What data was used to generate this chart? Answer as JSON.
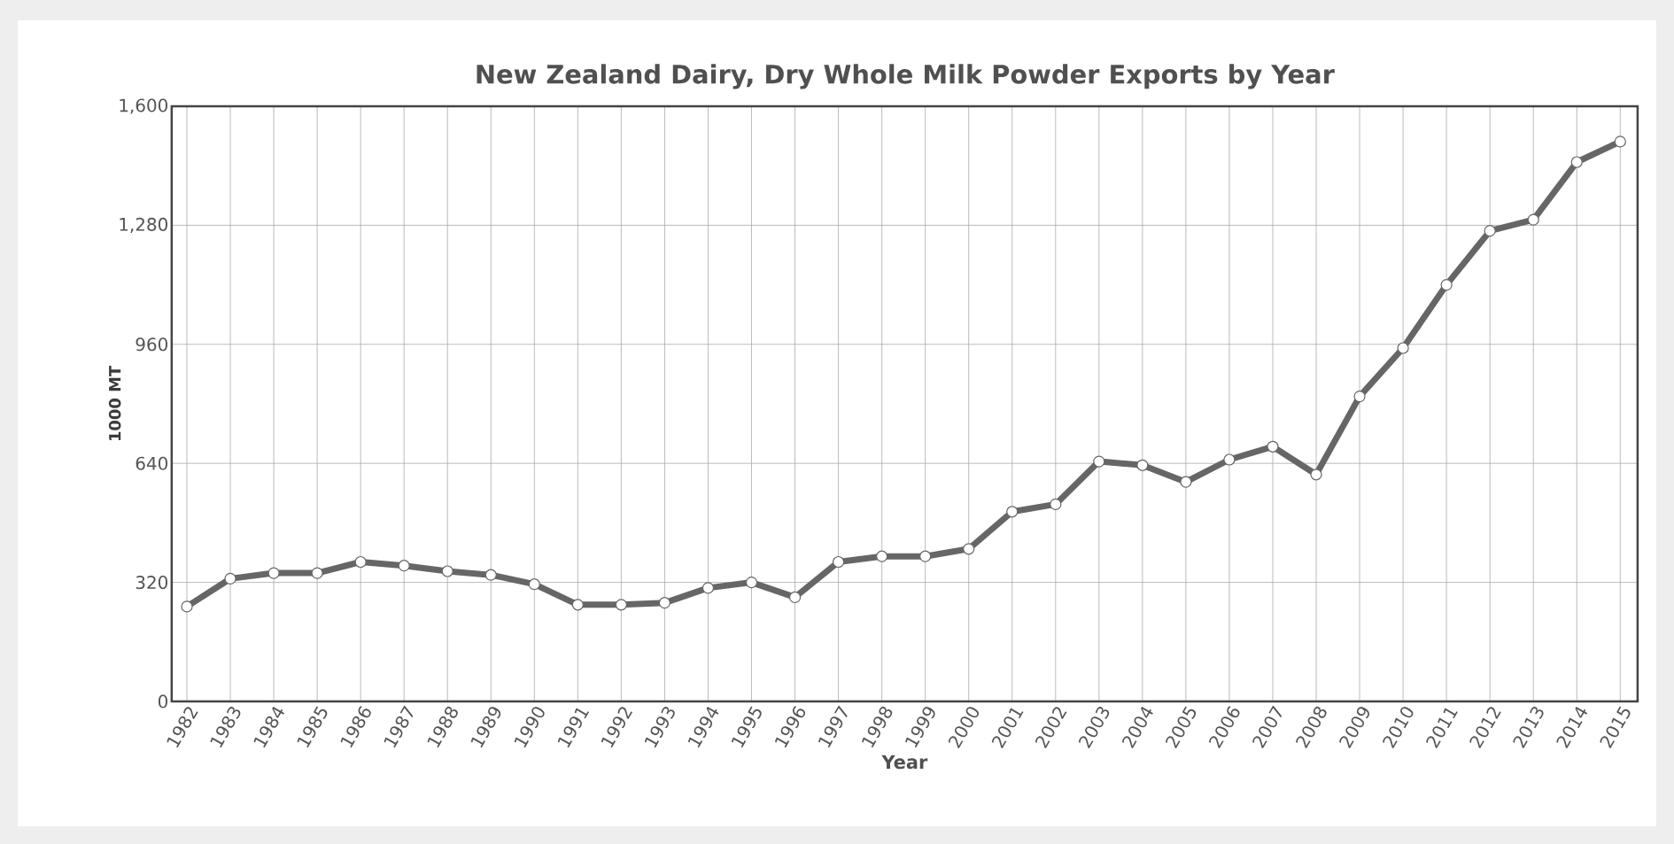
{
  "chart_data": {
    "type": "line",
    "title": "New Zealand Dairy, Dry Whole Milk Powder Exports by Year",
    "xlabel": "Year",
    "ylabel": "1000 MT",
    "categories": [
      "1982",
      "1983",
      "1984",
      "1985",
      "1986",
      "1987",
      "1988",
      "1989",
      "1990",
      "1991",
      "1992",
      "1993",
      "1994",
      "1995",
      "1996",
      "1997",
      "1998",
      "1999",
      "2000",
      "2001",
      "2002",
      "2003",
      "2004",
      "2005",
      "2006",
      "2007",
      "2008",
      "2009",
      "2010",
      "2011",
      "2012",
      "2013",
      "2014",
      "2015"
    ],
    "series": [
      {
        "color": "#666666",
        "values": [
          255,
          330,
          345,
          345,
          375,
          365,
          350,
          340,
          315,
          260,
          260,
          265,
          305,
          320,
          280,
          375,
          390,
          390,
          410,
          510,
          530,
          645,
          635,
          590,
          650,
          685,
          610,
          820,
          950,
          1120,
          1265,
          1295,
          1450,
          1505
        ]
      }
    ],
    "ylim": [
      0,
      1600
    ],
    "yticks": [
      0,
      {
        "value": 320,
        "label": "320"
      },
      {
        "value": 640,
        "label": "640"
      },
      {
        "value": 960,
        "label": "960"
      },
      {
        "value": 1280,
        "label": "1,280"
      },
      {
        "value": 1600,
        "label": "1,600"
      }
    ],
    "grid": true,
    "marker": "circle",
    "line_style": "solid"
  }
}
